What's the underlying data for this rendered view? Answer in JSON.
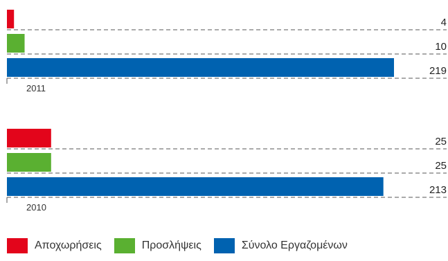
{
  "chart_data": [
    {
      "type": "bar",
      "orientation": "horizontal",
      "group_label": "2011",
      "series": [
        {
          "name": "Αποχωρήσεις",
          "values": [
            4
          ]
        },
        {
          "name": "Προσλήψεις",
          "values": [
            10
          ]
        },
        {
          "name": "Σύνολο Εργαζομένων",
          "values": [
            219
          ]
        }
      ],
      "xlim": [
        0,
        219
      ],
      "grid": "dashed"
    },
    {
      "type": "bar",
      "orientation": "horizontal",
      "group_label": "2010",
      "series": [
        {
          "name": "Αποχωρήσεις",
          "values": [
            25
          ]
        },
        {
          "name": "Προσλήψεις",
          "values": [
            25
          ]
        },
        {
          "name": "Σύνολο Εργαζομένων",
          "values": [
            213
          ]
        }
      ],
      "xlim": [
        0,
        219
      ],
      "grid": "dashed"
    }
  ],
  "legend": [
    {
      "label": "Αποχωρήσεις",
      "color": "#e3051b"
    },
    {
      "label": "Προσλήψεις",
      "color": "#5ab031"
    },
    {
      "label": "Σύνολο Εργαζομένων",
      "color": "#0062b0"
    }
  ],
  "legend_position": "bottom-left"
}
